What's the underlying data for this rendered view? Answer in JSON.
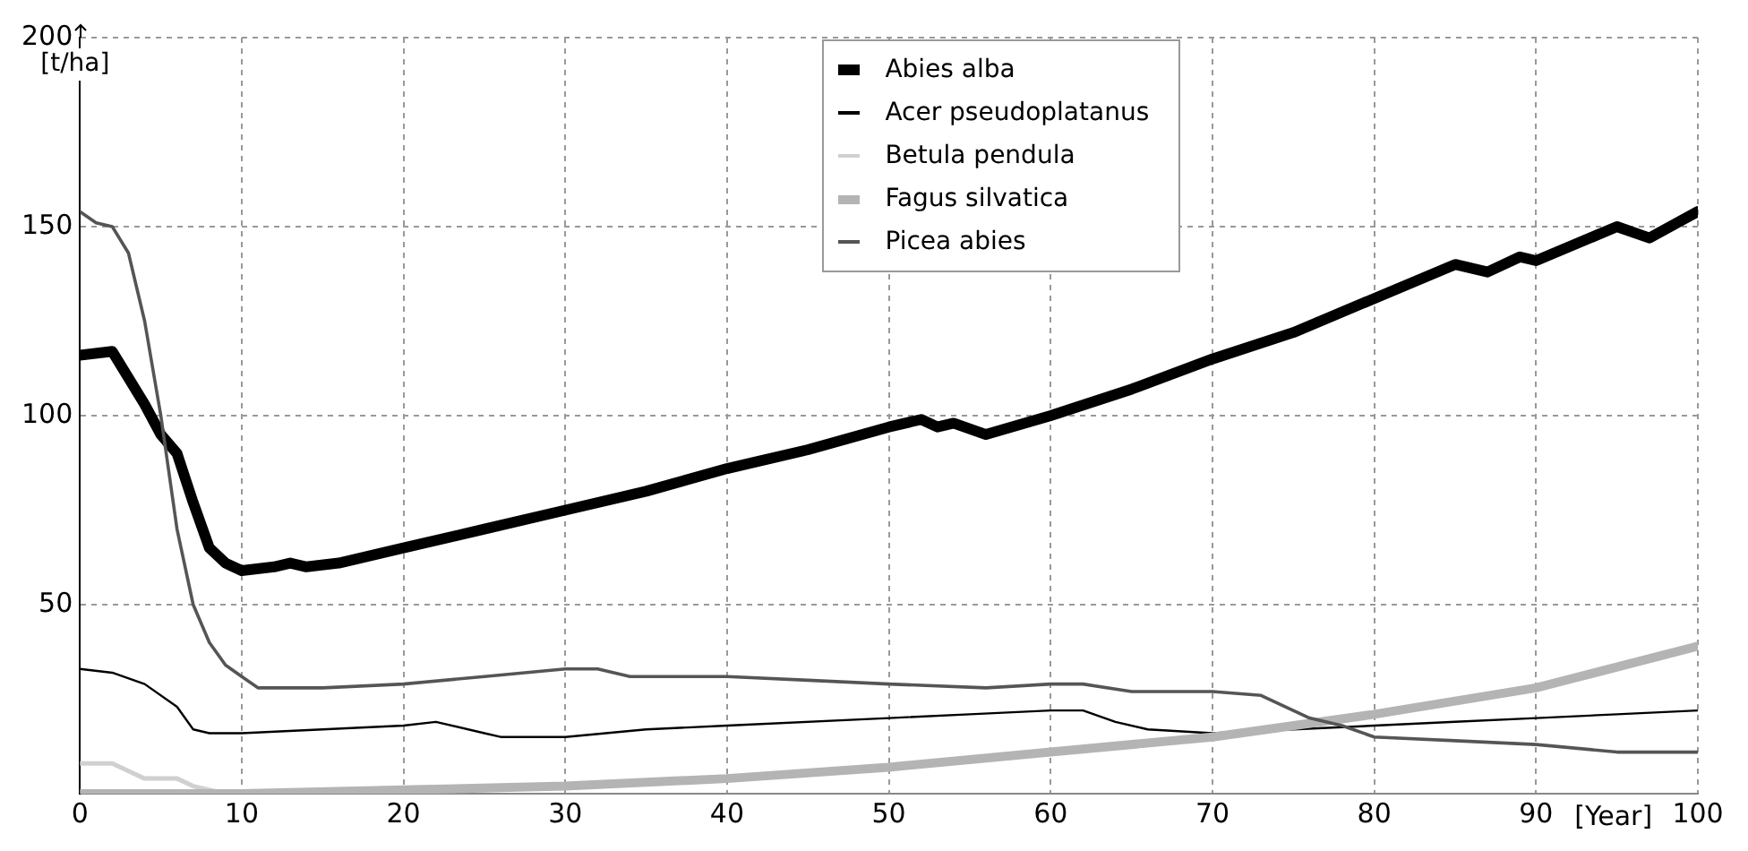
{
  "chart_data": {
    "type": "line",
    "xlabel": "[Year]",
    "ylabel": "[t/ha]",
    "xlim": [
      0,
      100
    ],
    "ylim": [
      0,
      200
    ],
    "xticks": [
      0,
      10,
      20,
      30,
      40,
      50,
      60,
      70,
      80,
      90,
      100
    ],
    "yticks": [
      50,
      100,
      150,
      200
    ],
    "grid": true,
    "legend": "top",
    "marker": "none",
    "line_style": "solid",
    "series": [
      {
        "name": "Abies alba",
        "color": "#000000",
        "x": [
          0,
          2,
          3,
          4,
          5,
          6,
          7,
          8,
          9,
          10,
          12,
          13,
          14,
          16,
          20,
          25,
          30,
          35,
          40,
          45,
          50,
          52,
          53,
          54,
          56,
          60,
          65,
          70,
          75,
          80,
          85,
          87,
          89,
          90,
          95,
          97,
          100
        ],
        "values": [
          116,
          117,
          110,
          103,
          95,
          90,
          77,
          65,
          61,
          59,
          60,
          61,
          60,
          61,
          65,
          70,
          75,
          80,
          86,
          91,
          97,
          99,
          97,
          98,
          95,
          100,
          107,
          115,
          122,
          131,
          140,
          138,
          142,
          141,
          150,
          147,
          154
        ]
      },
      {
        "name": "Acer pseudoplatanus",
        "color": "#000000",
        "x": [
          0,
          2,
          4,
          6,
          7,
          8,
          10,
          15,
          20,
          22,
          25,
          26,
          30,
          35,
          40,
          50,
          55,
          60,
          62,
          64,
          66,
          70,
          75,
          80,
          85,
          90,
          95,
          100
        ],
        "values": [
          33,
          32,
          29,
          23,
          17,
          16,
          16,
          17,
          18,
          19,
          16,
          15,
          15,
          17,
          18,
          20,
          21,
          22,
          22,
          19,
          17,
          16,
          17,
          18,
          19,
          20,
          21,
          22
        ]
      },
      {
        "name": "Betula pendula",
        "color": "#d0d0d0",
        "x": [
          0,
          2,
          3,
          4,
          6,
          7,
          9,
          10
        ],
        "values": [
          8,
          8,
          6,
          4,
          4,
          2,
          0,
          0
        ]
      },
      {
        "name": "Fagus silvatica",
        "color": "#b4b4b4",
        "x": [
          0,
          10,
          20,
          30,
          40,
          50,
          60,
          70,
          80,
          90,
          100
        ],
        "values": [
          0,
          0,
          1,
          2,
          4,
          7,
          11,
          15,
          21,
          28,
          39
        ]
      },
      {
        "name": "Picea abies",
        "color": "#555555",
        "x": [
          0,
          1,
          2,
          3,
          4,
          5,
          6,
          7,
          8,
          9,
          10,
          11,
          15,
          20,
          25,
          30,
          32,
          34,
          40,
          45,
          50,
          56,
          60,
          62,
          65,
          68,
          70,
          73,
          76,
          78,
          80,
          85,
          90,
          95,
          100
        ],
        "values": [
          154,
          151,
          150,
          143,
          125,
          100,
          70,
          50,
          40,
          34,
          31,
          28,
          28,
          29,
          31,
          33,
          33,
          31,
          31,
          30,
          29,
          28,
          29,
          29,
          27,
          27,
          27,
          26,
          20,
          18,
          15,
          14,
          13,
          11,
          11
        ]
      }
    ]
  }
}
